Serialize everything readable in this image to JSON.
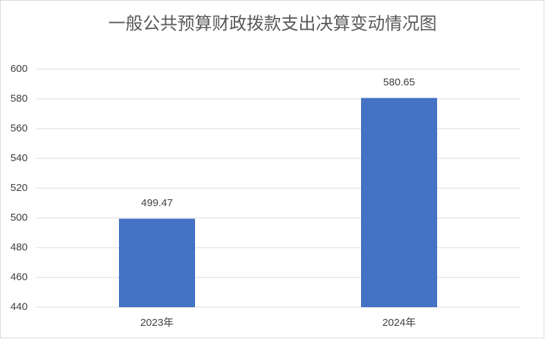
{
  "chart_data": {
    "type": "bar",
    "title": "一般公共预算财政拨款支出决算变动情况图",
    "categories": [
      "2023年",
      "2024年"
    ],
    "values": [
      499.47,
      580.65
    ],
    "color": "#4472c4",
    "ylim": [
      440,
      600
    ],
    "yticks": [
      440,
      460,
      480,
      500,
      520,
      540,
      560,
      580,
      600
    ],
    "grid": true
  }
}
